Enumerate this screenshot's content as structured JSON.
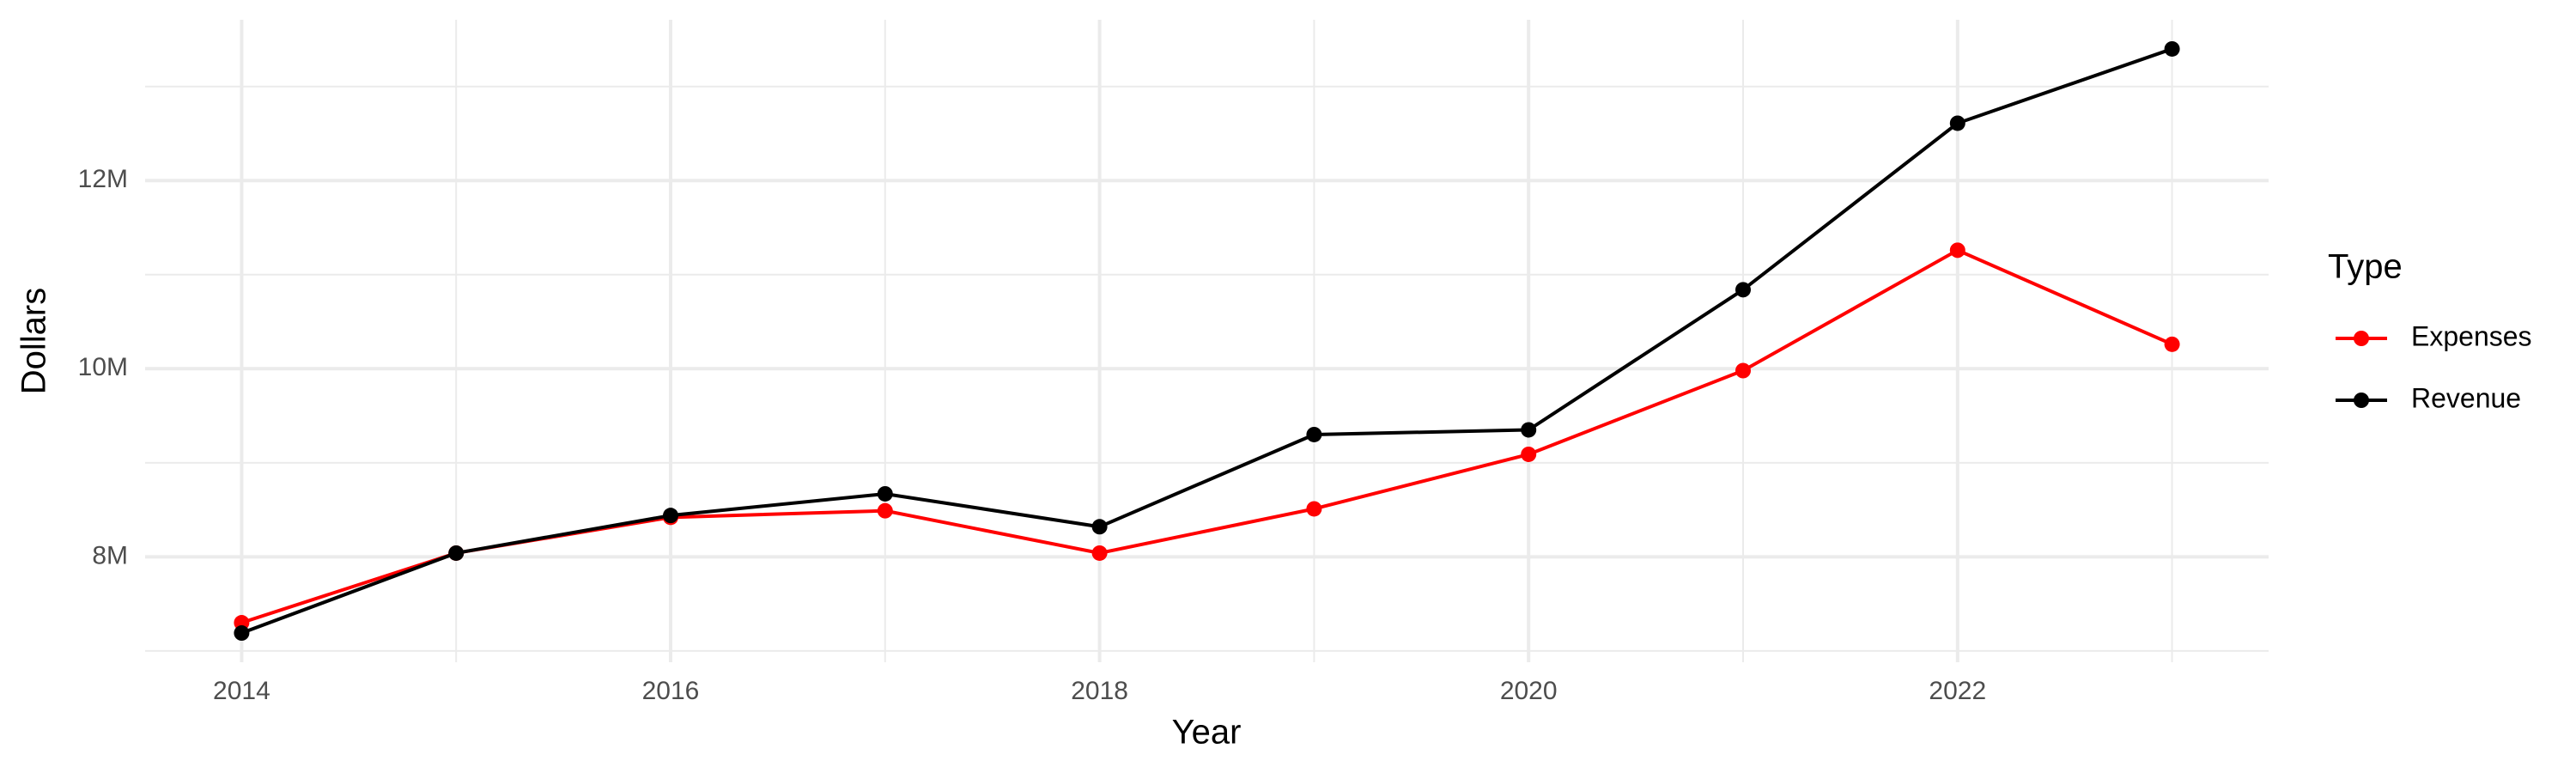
{
  "chart_data": {
    "type": "line",
    "x_label": "Year",
    "y_label": "Dollars",
    "legend_title": "Type",
    "x": [
      2014,
      2015,
      2016,
      2017,
      2018,
      2019,
      2020,
      2021,
      2022,
      2023
    ],
    "series": [
      {
        "name": "Expenses",
        "color": "#ff0000",
        "values": [
          7300000,
          8040000,
          8420000,
          8490000,
          8040000,
          8510000,
          9090000,
          9980000,
          11260000,
          10260000
        ]
      },
      {
        "name": "Revenue",
        "color": "#000000",
        "values": [
          7190000,
          8040000,
          8440000,
          8670000,
          8320000,
          9300000,
          9350000,
          10840000,
          12610000,
          13400000
        ]
      }
    ],
    "xlim": [
      2013.55,
      2023.45
    ],
    "xticks": [
      2014,
      2016,
      2018,
      2020,
      2022
    ],
    "ylim": [
      6880000,
      13710000
    ],
    "yticks": [
      {
        "value": 8000000,
        "label": "8M"
      },
      {
        "value": 10000000,
        "label": "10M"
      },
      {
        "value": 12000000,
        "label": "12M"
      }
    ],
    "grid": true,
    "legend": "right"
  }
}
